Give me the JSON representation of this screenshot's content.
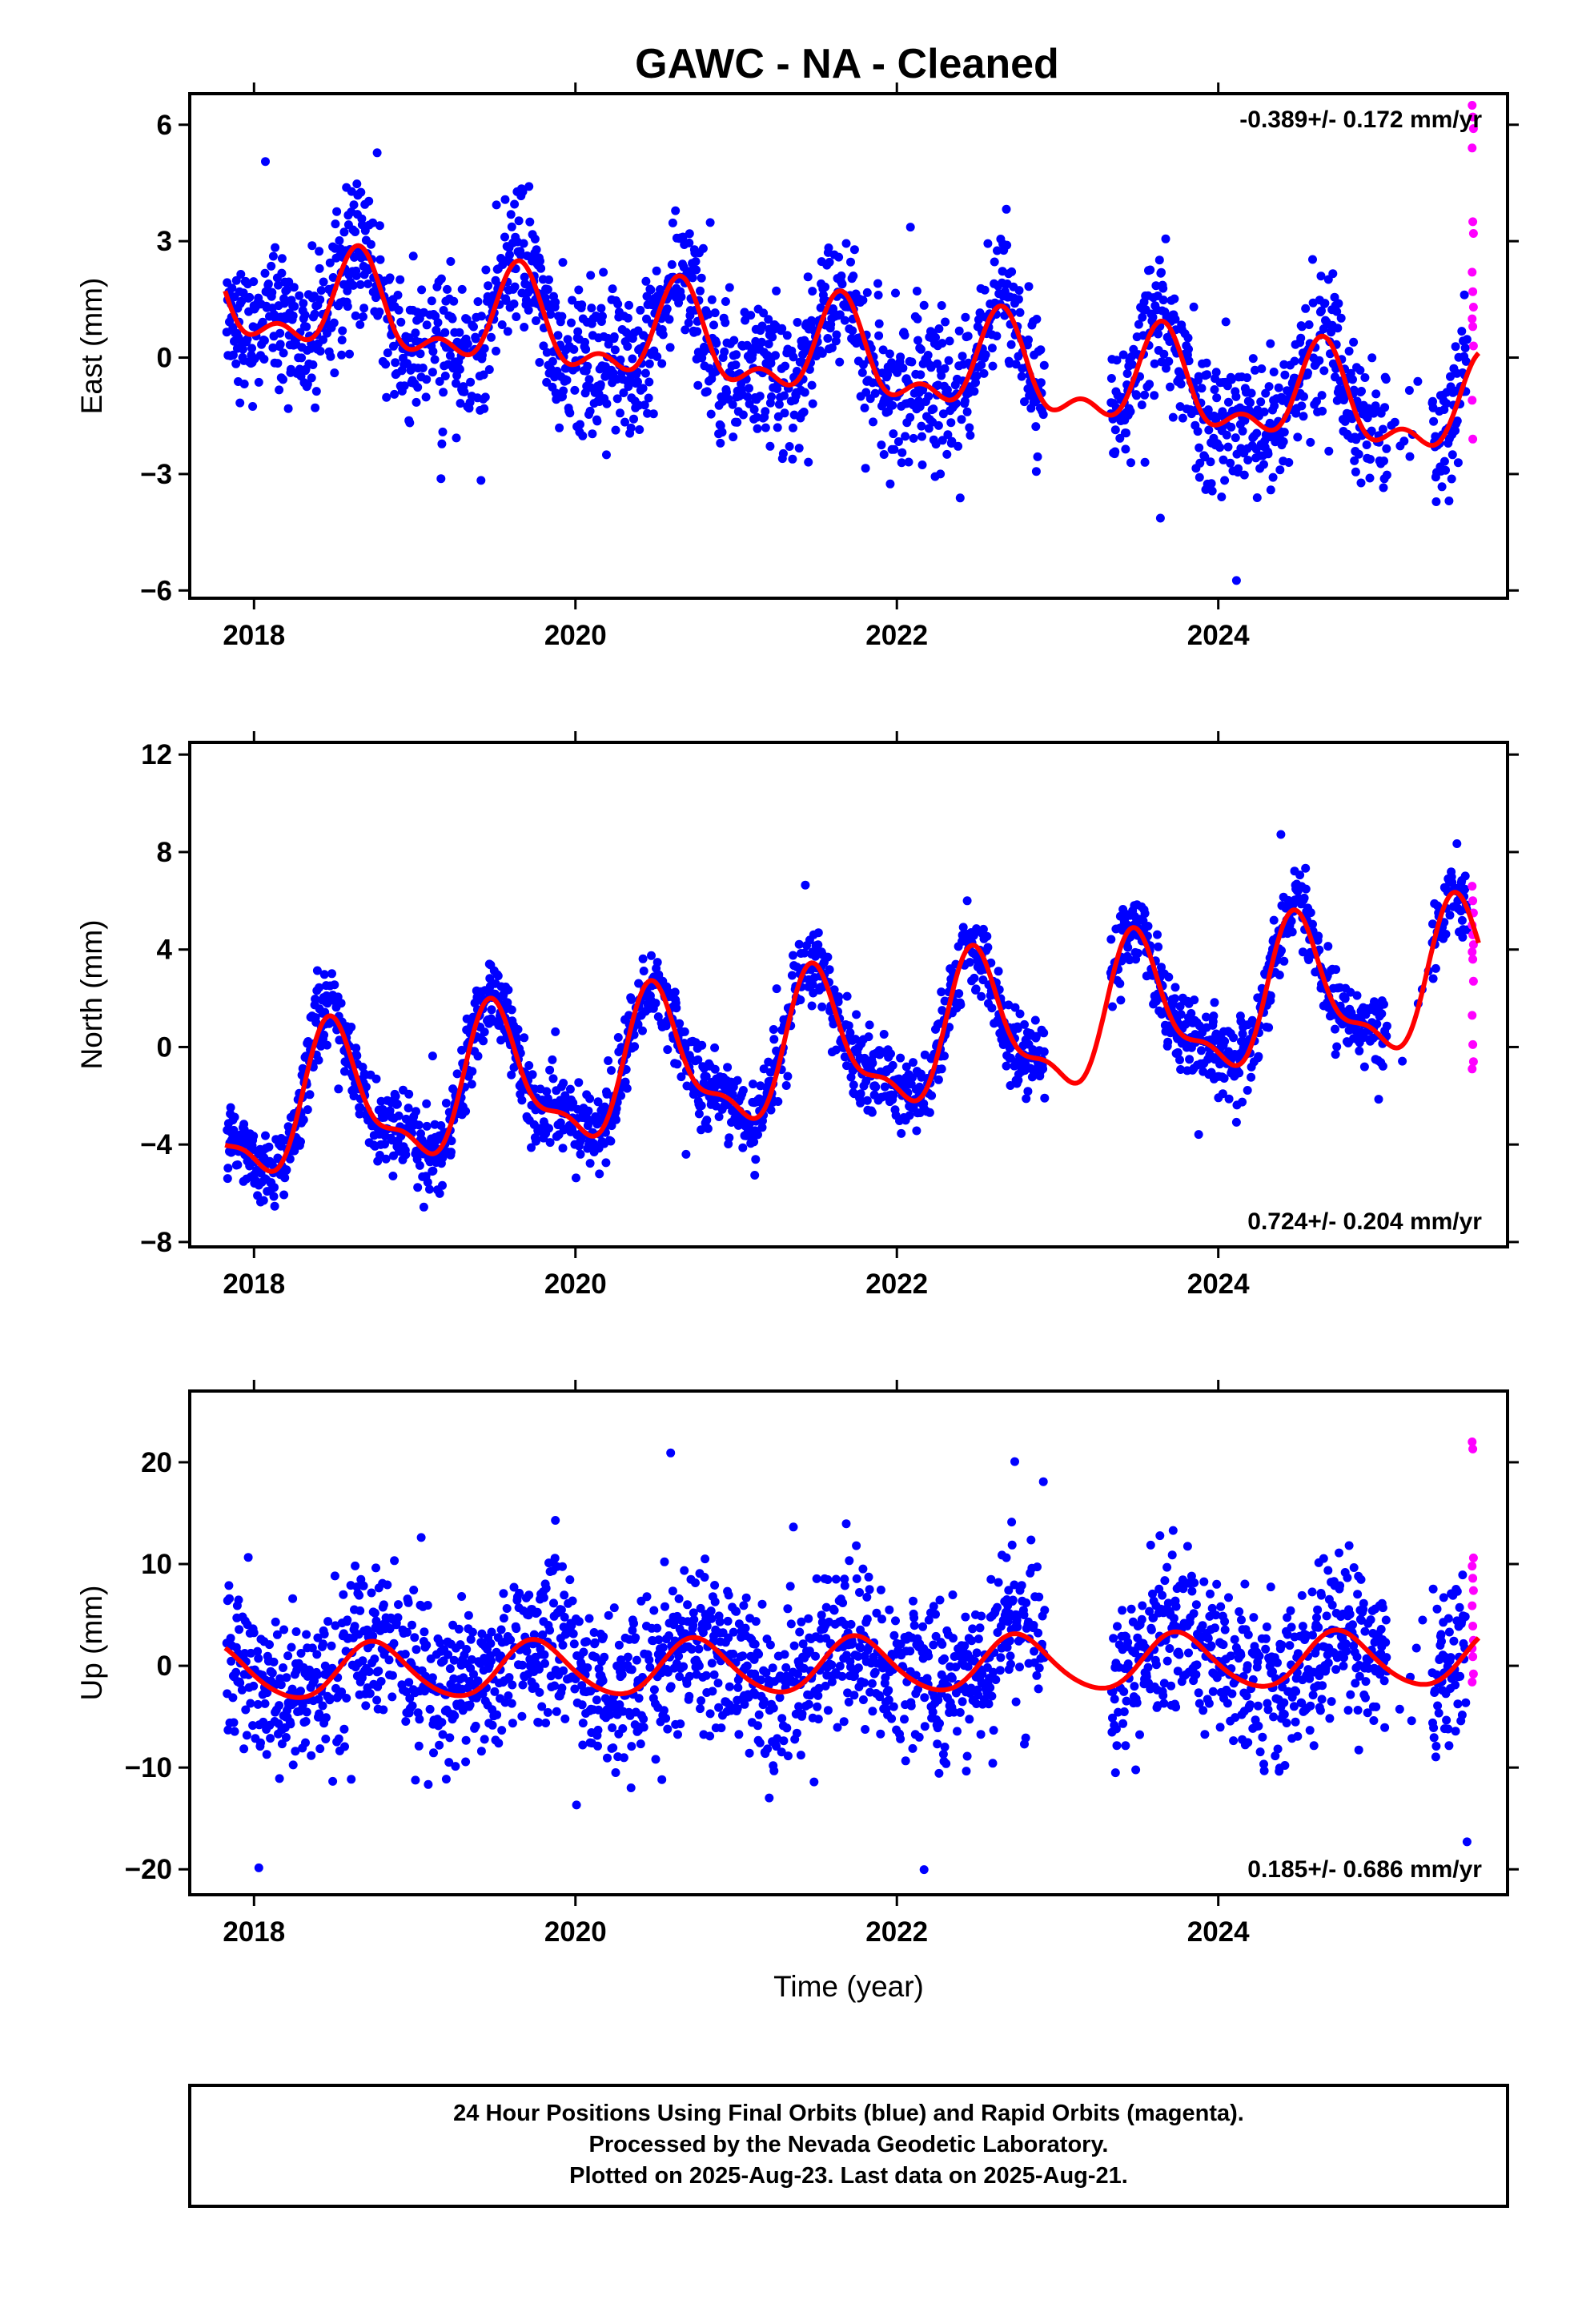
{
  "title": "GAWC  - NA - Cleaned",
  "colors": {
    "final": "#0000ff",
    "rapid": "#ff00ff",
    "model": "#ff0000",
    "axis": "#000000"
  },
  "chart_data": [
    {
      "type": "scatter",
      "ylabel": "East (mm)",
      "rate_text": "-0.389+/- 0.172 mm/yr",
      "rate_position": "top-right",
      "xlim": [
        2017.6,
        2025.8
      ],
      "ylim": [
        -6.2,
        6.8
      ],
      "x_ticks": [
        "2018",
        "2020",
        "2022",
        "2024"
      ],
      "y_ticks": [
        "6",
        "3",
        "0",
        "−3",
        "−6"
      ],
      "model": {
        "trend_mm_per_yr": -0.389,
        "annual_amp": 1.1,
        "annual_peak": 0.65,
        "semi_amp": 0.6,
        "semi_peak": 0.15
      },
      "noise_sd": 0.9,
      "rapid_values": [
        6.5,
        6.2,
        5.9,
        5.4,
        3.5,
        3.2,
        2.2,
        1.7,
        1.3,
        1.0,
        0.8,
        0.3,
        -1.1,
        -2.1
      ]
    },
    {
      "type": "scatter",
      "ylabel": "North (mm)",
      "rate_text": "0.724+/- 0.204 mm/yr",
      "rate_position": "bottom-right",
      "xlim": [
        2017.6,
        2025.8
      ],
      "ylim": [
        -8.2,
        12.5
      ],
      "x_ticks": [
        "2018",
        "2020",
        "2022",
        "2024"
      ],
      "y_ticks": [
        "12",
        "8",
        "4",
        "0",
        "−4",
        "−8"
      ],
      "model": {
        "trend_mm_per_yr": 0.724,
        "annual_amp": 2.7,
        "annual_peak": 0.5,
        "semi_amp": 1.0,
        "semi_peak": 0.45
      },
      "noise_sd": 0.8,
      "rapid_values": [
        6.6,
        6.0,
        5.5,
        5.0,
        4.6,
        4.2,
        3.9,
        3.6,
        2.7,
        1.3,
        0.1,
        -0.6,
        -0.9
      ]
    },
    {
      "type": "scatter",
      "ylabel": "Up (mm)",
      "xlabel": "Time (year)",
      "rate_text": "0.185+/- 0.686 mm/yr",
      "rate_position": "bottom-right",
      "xlim": [
        2017.6,
        2025.8
      ],
      "ylim": [
        -22.5,
        27
      ],
      "x_ticks": [
        "2018",
        "2020",
        "2022",
        "2024"
      ],
      "y_ticks": [
        "20",
        "10",
        "0",
        "−10",
        "−20"
      ],
      "model": {
        "trend_mm_per_yr": 0.185,
        "annual_amp": 2.7,
        "annual_peak": 0.75,
        "semi_amp": 0.3,
        "semi_peak": 0.2
      },
      "noise_sd": 3.9,
      "rapid_values": [
        22.0,
        21.3,
        10.6,
        9.8,
        8.6,
        7.4,
        5.9,
        3.9,
        2.5,
        1.7,
        0.9,
        -0.8,
        -1.6
      ]
    }
  ],
  "footer": [
    "24 Hour Positions Using Final Orbits (blue) and Rapid Orbits (magenta).",
    "Processed by the Nevada Geodetic Laboratory.",
    "Plotted on 2025-Aug-23. Last data on 2025-Aug-21."
  ]
}
